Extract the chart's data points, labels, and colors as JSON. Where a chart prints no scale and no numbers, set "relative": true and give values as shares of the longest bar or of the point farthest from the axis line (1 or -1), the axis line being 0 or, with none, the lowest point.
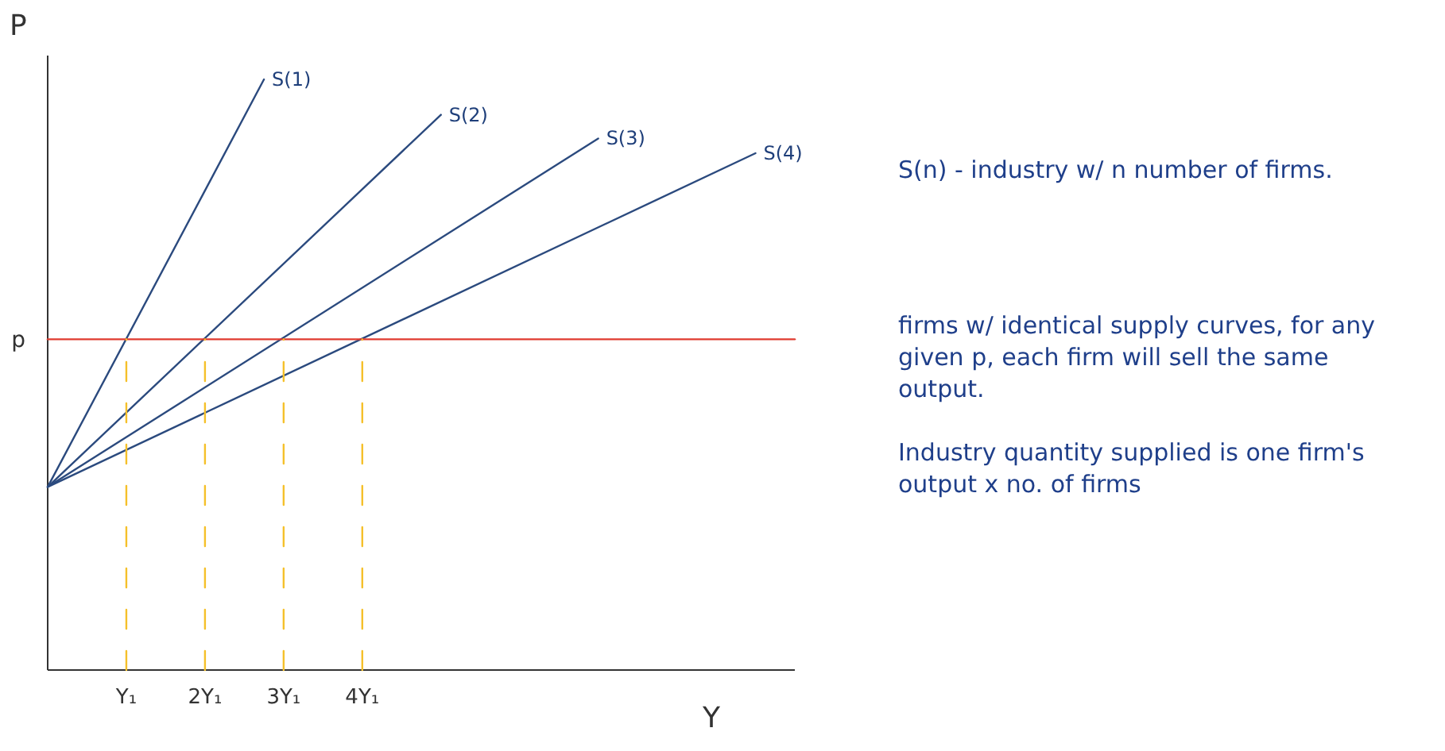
{
  "chart_data": {
    "type": "line",
    "xlabel": "Y",
    "ylabel": "P",
    "relative": true,
    "xlim": [
      0,
      9.5
    ],
    "xticks": [
      {
        "value": 1,
        "label": "Y₁"
      },
      {
        "value": 2,
        "label": "2Y₁"
      },
      {
        "value": 3,
        "label": "3Y₁"
      },
      {
        "value": 4,
        "label": "4Y₁"
      }
    ],
    "series": [
      {
        "name": "S(1)",
        "color": "#2b4a7e",
        "x": [
          0,
          2.75
        ],
        "values": [
          0.31,
          1
        ]
      },
      {
        "name": "S(2)",
        "color": "#2b4a7e",
        "x": [
          0,
          5
        ],
        "values": [
          0.31,
          0.94
        ]
      },
      {
        "name": "S(3)",
        "color": "#2b4a7e",
        "x": [
          0,
          7
        ],
        "values": [
          0.31,
          0.9
        ]
      },
      {
        "name": "S(4)",
        "color": "#2b4a7e",
        "x": [
          0,
          9
        ],
        "values": [
          0.31,
          0.875
        ]
      },
      {
        "color": "#e03a2f",
        "x": [
          0,
          9.5
        ],
        "values": [
          0.56,
          0.56
        ]
      },
      {
        "color": "#f5c02a",
        "x": [
          1,
          1
        ],
        "values": [
          0,
          0.56
        ],
        "line_style": "dashed"
      },
      {
        "color": "#f5c02a",
        "x": [
          2,
          2
        ],
        "values": [
          0,
          0.56
        ],
        "line_style": "dashed"
      },
      {
        "color": "#f5c02a",
        "x": [
          3,
          3
        ],
        "values": [
          0,
          0.56
        ],
        "line_style": "dashed"
      },
      {
        "color": "#f5c02a",
        "x": [
          4,
          4
        ],
        "values": [
          0,
          0.56
        ],
        "line_style": "dashed"
      }
    ],
    "annotations": [
      {
        "text": "p",
        "x": 0,
        "y": 0.56
      },
      "S(n) - industry w/ n number of firms.",
      "firms w/ identical supply curves, for any given p, each firm will sell the same output.",
      "Industry quantity supplied is one firm's output x no. of firms"
    ],
    "legend": false,
    "marker": "none"
  }
}
